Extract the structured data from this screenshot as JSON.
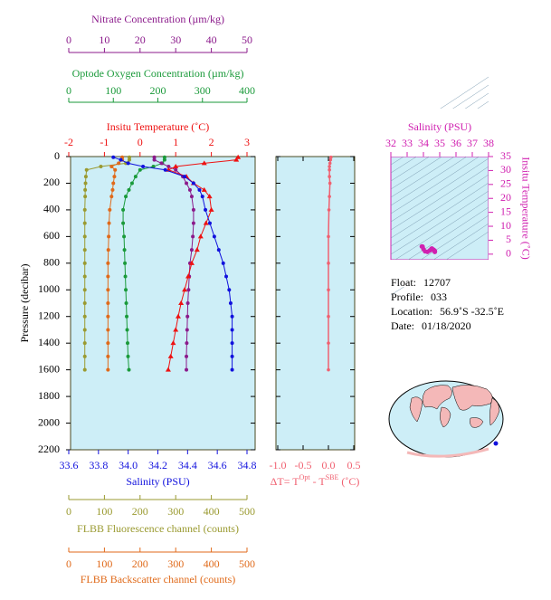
{
  "chart_data": [
    {
      "type": "profile",
      "ylabel": "Pressure (decibar)",
      "ylim": [
        0,
        2200
      ],
      "yticks": [
        0,
        200,
        400,
        600,
        800,
        1000,
        1200,
        1400,
        1600,
        1800,
        2000,
        2200
      ],
      "y": [
        5,
        25,
        50,
        75,
        100,
        150,
        200,
        250,
        300,
        400,
        500,
        600,
        700,
        800,
        900,
        1000,
        1100,
        1200,
        1300,
        1400,
        1500,
        1600
      ],
      "axes": [
        {
          "label": "Nitrate Concentration (µm/kg)",
          "color": "#8b1a8b",
          "xlim": [
            0,
            50
          ],
          "xticks": [
            0,
            10,
            20,
            30,
            40,
            50
          ]
        },
        {
          "label": "Optode Oxygen Concentration (µm/kg)",
          "color": "#1a9a3a",
          "xlim": [
            0,
            400
          ],
          "xticks": [
            0,
            100,
            200,
            300,
            400
          ]
        },
        {
          "label": "Insitu Temperature (˚C)",
          "color": "#ee1111",
          "xlim": [
            -2,
            3
          ],
          "xticks": [
            -2,
            -1,
            0,
            1,
            2,
            3
          ]
        },
        {
          "label": "Salinity (PSU)",
          "color": "#1111dd",
          "xlim": [
            33.6,
            34.8
          ],
          "xticks": [
            33.6,
            33.8,
            {
              "value": 34,
              "label": "34.0"
            },
            34.2,
            34.4,
            34.6,
            34.8
          ]
        },
        {
          "label": "FLBB Fluorescence channel (counts)",
          "color": "#9a9a30",
          "xlim": [
            0,
            500
          ],
          "xticks": [
            0,
            100,
            200,
            300,
            400,
            500
          ]
        },
        {
          "label": "FLBB Backscatter channel (counts)",
          "color": "#e06a1a",
          "xlim": [
            0,
            500
          ],
          "xticks": [
            0,
            100,
            200,
            300,
            400,
            500
          ]
        }
      ],
      "series": [
        {
          "axis": 4,
          "color": "#9a9a30",
          "marker": "circle",
          "values": [
            170,
            170,
            160,
            90,
            50,
            48,
            47,
            46,
            46,
            45,
            45,
            45,
            45,
            45,
            45,
            45,
            45,
            45,
            45,
            45,
            45,
            45
          ]
        },
        {
          "axis": 5,
          "color": "#e06a1a",
          "marker": "circle",
          "values": [
            150,
            150,
            140,
            120,
            130,
            128,
            125,
            123,
            120,
            115,
            113,
            112,
            111,
            110,
            110,
            110,
            110,
            110,
            110,
            110,
            110,
            110
          ]
        },
        {
          "axis": 1,
          "color": "#1a9a3a",
          "marker": "circle",
          "values": [
            215,
            215,
            210,
            190,
            160,
            150,
            142,
            135,
            128,
            122,
            122,
            124,
            125,
            126,
            127,
            128,
            129,
            130,
            131,
            132,
            133,
            135
          ]
        },
        {
          "axis": 0,
          "color": "#8b1a8b",
          "marker": "circle",
          "values": [
            24,
            24,
            26,
            28,
            30,
            32,
            33,
            34,
            34.5,
            35,
            35,
            34.8,
            34.5,
            34,
            33.8,
            33.6,
            33.4,
            33.3,
            33.2,
            33.1,
            33,
            33
          ]
        },
        {
          "axis": 2,
          "color": "#ee1111",
          "marker": "triangle",
          "values": [
            2.75,
            2.7,
            1.8,
            1.0,
            0.8,
            1.3,
            1.5,
            1.8,
            1.95,
            2.0,
            1.85,
            1.7,
            1.6,
            1.45,
            1.35,
            1.25,
            1.15,
            1.07,
            1.0,
            0.93,
            0.86,
            0.79
          ]
        },
        {
          "axis": 3,
          "color": "#1111dd",
          "marker": "circle",
          "values": [
            33.9,
            33.95,
            34.0,
            34.1,
            34.25,
            34.38,
            34.44,
            34.48,
            34.5,
            34.52,
            34.55,
            34.58,
            34.61,
            34.64,
            34.66,
            34.68,
            34.69,
            34.7,
            34.7,
            34.7,
            34.7,
            34.7
          ]
        }
      ]
    },
    {
      "type": "delta",
      "label": [
        "ΔT= T",
        "Opt",
        " - T",
        "SBE",
        " (˚C)"
      ],
      "color": "#f06070",
      "xlim": [
        -1.0,
        0.5
      ],
      "xticks": [
        {
          "value": -1,
          "label": "-1.0"
        },
        -0.5,
        {
          "value": 0,
          "label": "0.0"
        },
        0.5
      ],
      "y": [
        5,
        25,
        50,
        75,
        100,
        150,
        200,
        300,
        400,
        600,
        800,
        1000,
        1200,
        1400,
        1600
      ],
      "values": [
        0.05,
        0.04,
        0.03,
        0.02,
        0.02,
        0.02,
        0.03,
        0.02,
        0.01,
        0.0,
        0.0,
        0.0,
        0.0,
        0.0,
        0.0
      ]
    },
    {
      "type": "ts",
      "xlabel": "Salinity (PSU)",
      "ylabel": "Insitu Temperature (˚C)",
      "color": "#d020b0",
      "xlim": [
        32,
        38
      ],
      "xticks": [
        32,
        33,
        34,
        35,
        36,
        37,
        38
      ],
      "ylim": [
        -2,
        35
      ],
      "yticks": [
        0,
        5,
        10,
        15,
        20,
        25,
        30,
        35
      ]
    }
  ],
  "info": [
    {
      "label": "Float:",
      "value": "12707"
    },
    {
      "label": "Profile:",
      "value": "033"
    },
    {
      "label": "Location:",
      "value": "56.9˚S  -32.5˚E"
    },
    {
      "label": "Date:",
      "value": "01/18/2020"
    }
  ]
}
